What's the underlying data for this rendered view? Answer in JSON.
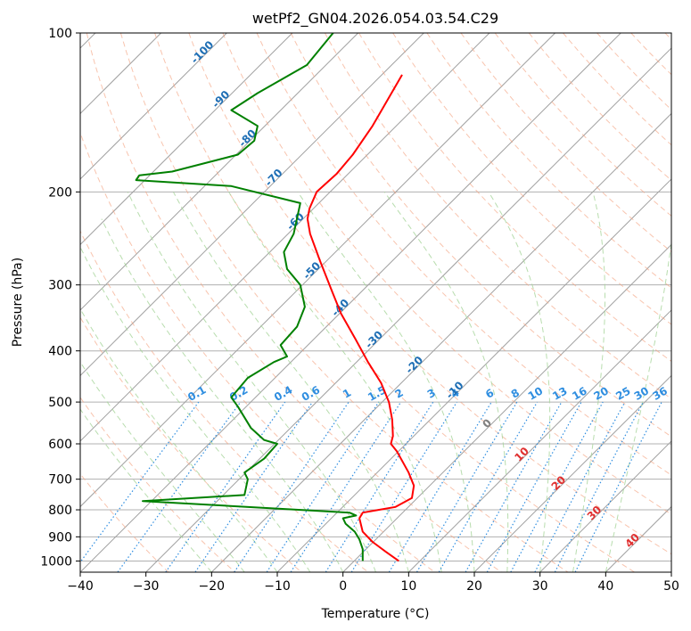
{
  "chart_data": {
    "type": "line",
    "title": "wetPf2_GN04.2026.054.03.54.C29",
    "xlabel": "Temperature (°C)",
    "ylabel": "Pressure (hPa)",
    "xlim": [
      -40,
      50
    ],
    "ylim": [
      1050,
      100
    ],
    "y_scale": "log",
    "x_ticks": [
      -40,
      -30,
      -20,
      -10,
      0,
      10,
      20,
      30,
      40,
      50
    ],
    "y_ticks": [
      100,
      200,
      300,
      400,
      500,
      600,
      700,
      800,
      900,
      1000
    ],
    "grid": true,
    "colors": {
      "temperature": "#ff0000",
      "dewpoint": "#008000",
      "isotherm": "#a0a0a0",
      "dry_adiabat": "#f4a582",
      "moist_adiabat": "#a6d49a",
      "mixing_ratio": "#2f8ee0",
      "skewed_label": "#1f6fb5",
      "moist_label": "#e03030",
      "isobar": "#b0b0b0",
      "zero_label": "#808080"
    },
    "series": [
      {
        "key": "temperature",
        "x": [
          8.5,
          6.5,
          4.5,
          3.0,
          2.5,
          3.0,
          5.5,
          8.0,
          10.5,
          10.8,
          10.0,
          8.2,
          7.3,
          7.6,
          7.5,
          7.0,
          5.8,
          3.8,
          1.9,
          -0.3,
          -1.6,
          -3.5,
          -5.0,
          -5.4,
          -5.1,
          -4.0,
          -1.0,
          1.5,
          4.5,
          9.0
        ],
        "y": [
          1000,
          960,
          920,
          880,
          830,
          810,
          800,
          790,
          760,
          720,
          680,
          620,
          600,
          580,
          540,
          500,
          460,
          420,
          380,
          340,
          310,
          270,
          240,
          225,
          215,
          200,
          185,
          170,
          150,
          120
        ]
      },
      {
        "key": "dewpoint",
        "x": [
          3.0,
          3.0,
          2.5,
          1.8,
          0.4,
          0.0,
          2.0,
          1.0,
          -30.5,
          -15.0,
          -14.5,
          -15.0,
          -12.0,
          -10.0,
          -12.0,
          -14.0,
          -16.0,
          -17.0,
          -14.5,
          -10.5,
          -8.5,
          -9.5,
          -7.0,
          -5.8,
          -6.5,
          -8.5,
          -9.0,
          -7.5,
          -6.5,
          -17.0,
          -31.5,
          -31.0,
          -26.0,
          -16.0,
          -13.5,
          -13.0,
          -17.0,
          -13.0,
          -5.5,
          -1.5
        ],
        "y": [
          1000,
          950,
          910,
          880,
          850,
          830,
          820,
          810,
          770,
          750,
          700,
          680,
          640,
          600,
          590,
          560,
          510,
          490,
          450,
          420,
          410,
          390,
          360,
          330,
          300,
          280,
          260,
          240,
          210,
          195,
          190,
          186,
          183,
          170,
          160,
          150,
          140,
          130,
          115,
          100
        ]
      }
    ],
    "dry_adiabat_labels": [
      "-100",
      "-90",
      "-80",
      "-70",
      "-60",
      "-50",
      "-40",
      "-30",
      "-20",
      "-10"
    ],
    "zero_label": "0",
    "moist_adiabat_labels": [
      "10",
      "20",
      "30",
      "40"
    ],
    "mixing_ratio_labels": [
      "0.1",
      "0.2",
      "0.4",
      "0.6",
      "1",
      "1.5",
      "2",
      "3",
      "4",
      "6",
      "8",
      "10",
      "13",
      "16",
      "20",
      "25",
      "30",
      "36"
    ]
  }
}
